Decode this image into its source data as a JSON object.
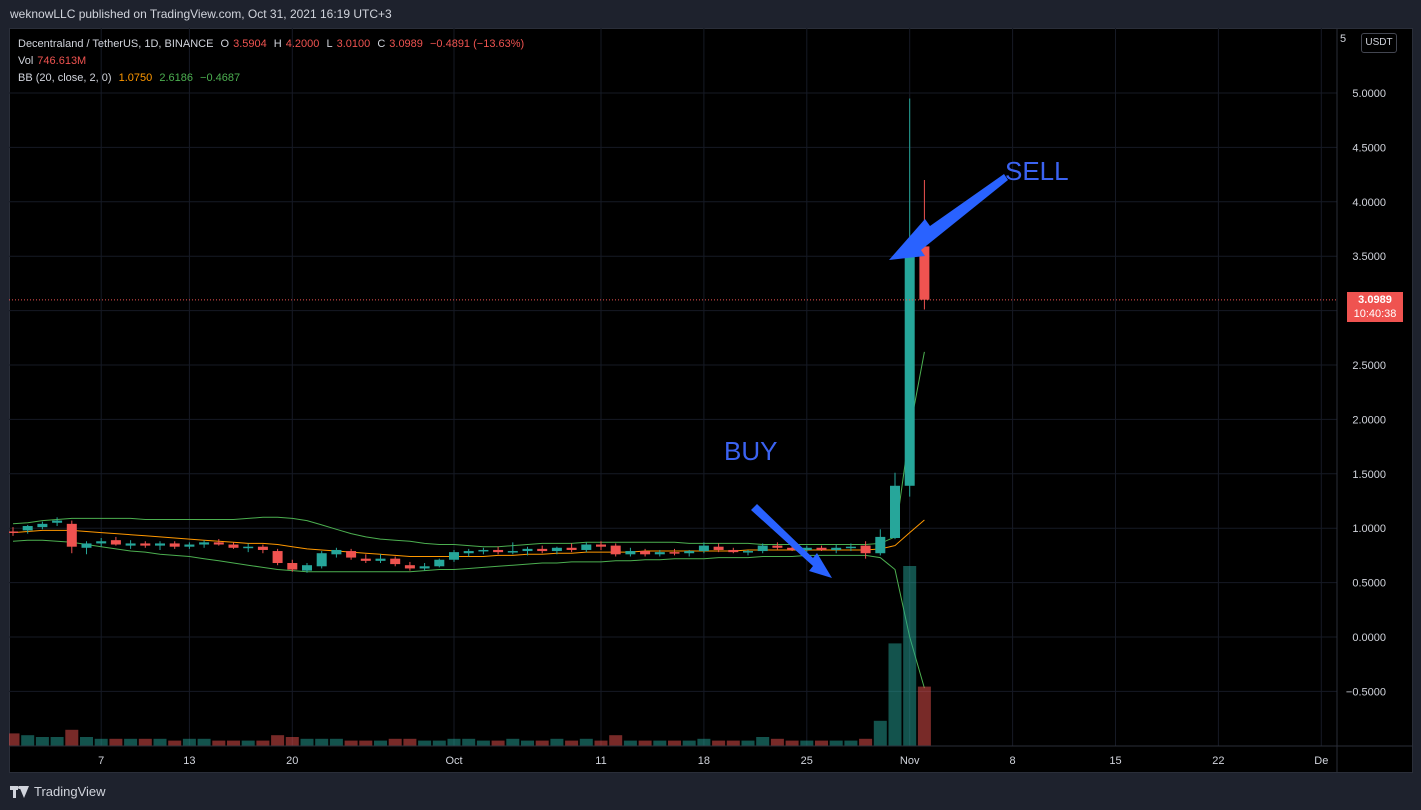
{
  "header": {
    "published": "weknowLLC published on TradingView.com, Oct 31, 2021 16:19 UTC+3"
  },
  "legend": {
    "symbol": "Decentraland / TetherUS, 1D, BINANCE",
    "o_label": "O",
    "o": "3.5904",
    "h_label": "H",
    "h": "4.2000",
    "l_label": "L",
    "l": "3.0100",
    "c_label": "C",
    "c": "3.0989",
    "change": "−0.4891 (−13.63%)",
    "vol_label": "Vol",
    "vol": "746.613M",
    "bb_label": "BB (20, close, 2, 0)",
    "bb_basis": "1.0750",
    "bb_upper": "2.6186",
    "bb_lower": "−0.4687"
  },
  "price_axis": {
    "currency": "USDT",
    "top_cut_label": "5",
    "last_price": "3.0989",
    "countdown": "10:40:38"
  },
  "annotations": {
    "buy": "BUY",
    "sell": "SELL"
  },
  "footer": {
    "brand": "TradingView"
  },
  "colors": {
    "up": "#26a69a",
    "down": "#ef5350",
    "bb_basis": "#ff9800",
    "bb_band": "#4caf50",
    "arrow": "#2962ff"
  },
  "chart_data": {
    "type": "candlestick",
    "y_range": [
      -1.0,
      5.5
    ],
    "y_ticks": [
      "5.0000",
      "4.5000",
      "4.0000",
      "3.5000",
      "3.0000",
      "2.5000",
      "2.0000",
      "1.5000",
      "1.0000",
      "0.5000",
      "0.0000",
      "−0.5000"
    ],
    "y_tick_values": [
      5.0,
      4.5,
      4.0,
      3.5,
      3.0,
      2.5,
      2.0,
      1.5,
      1.0,
      0.5,
      0.0,
      -0.5
    ],
    "x_ticks": [
      "7",
      "13",
      "20",
      "Oct",
      "11",
      "18",
      "25",
      "Nov",
      "8",
      "15",
      "22",
      "De"
    ],
    "x_tick_days": [
      6,
      12,
      19,
      30,
      40,
      47,
      54,
      61,
      68,
      75,
      82,
      89
    ],
    "candles": [
      {
        "o": 0.97,
        "h": 1.01,
        "l": 0.93,
        "c": 0.96
      },
      {
        "o": 0.98,
        "h": 1.03,
        "l": 0.95,
        "c": 1.02
      },
      {
        "o": 1.01,
        "h": 1.06,
        "l": 0.99,
        "c": 1.04
      },
      {
        "o": 1.05,
        "h": 1.1,
        "l": 1.02,
        "c": 1.07
      },
      {
        "o": 1.04,
        "h": 1.07,
        "l": 0.77,
        "c": 0.83
      },
      {
        "o": 0.82,
        "h": 0.88,
        "l": 0.76,
        "c": 0.86
      },
      {
        "o": 0.86,
        "h": 0.91,
        "l": 0.83,
        "c": 0.88
      },
      {
        "o": 0.89,
        "h": 0.92,
        "l": 0.84,
        "c": 0.85
      },
      {
        "o": 0.84,
        "h": 0.89,
        "l": 0.81,
        "c": 0.86
      },
      {
        "o": 0.86,
        "h": 0.88,
        "l": 0.82,
        "c": 0.84
      },
      {
        "o": 0.84,
        "h": 0.88,
        "l": 0.8,
        "c": 0.86
      },
      {
        "o": 0.86,
        "h": 0.88,
        "l": 0.81,
        "c": 0.83
      },
      {
        "o": 0.83,
        "h": 0.87,
        "l": 0.81,
        "c": 0.85
      },
      {
        "o": 0.85,
        "h": 0.89,
        "l": 0.82,
        "c": 0.87
      },
      {
        "o": 0.87,
        "h": 0.9,
        "l": 0.84,
        "c": 0.85
      },
      {
        "o": 0.85,
        "h": 0.87,
        "l": 0.81,
        "c": 0.82
      },
      {
        "o": 0.82,
        "h": 0.86,
        "l": 0.78,
        "c": 0.83
      },
      {
        "o": 0.83,
        "h": 0.85,
        "l": 0.77,
        "c": 0.8
      },
      {
        "o": 0.79,
        "h": 0.81,
        "l": 0.66,
        "c": 0.68
      },
      {
        "o": 0.68,
        "h": 0.71,
        "l": 0.6,
        "c": 0.62
      },
      {
        "o": 0.61,
        "h": 0.68,
        "l": 0.59,
        "c": 0.66
      },
      {
        "o": 0.65,
        "h": 0.79,
        "l": 0.63,
        "c": 0.77
      },
      {
        "o": 0.76,
        "h": 0.82,
        "l": 0.73,
        "c": 0.8
      },
      {
        "o": 0.79,
        "h": 0.81,
        "l": 0.71,
        "c": 0.73
      },
      {
        "o": 0.72,
        "h": 0.76,
        "l": 0.68,
        "c": 0.7
      },
      {
        "o": 0.7,
        "h": 0.76,
        "l": 0.68,
        "c": 0.72
      },
      {
        "o": 0.72,
        "h": 0.74,
        "l": 0.65,
        "c": 0.67
      },
      {
        "o": 0.66,
        "h": 0.69,
        "l": 0.61,
        "c": 0.63
      },
      {
        "o": 0.63,
        "h": 0.68,
        "l": 0.61,
        "c": 0.65
      },
      {
        "o": 0.65,
        "h": 0.72,
        "l": 0.64,
        "c": 0.71
      },
      {
        "o": 0.71,
        "h": 0.8,
        "l": 0.69,
        "c": 0.78
      },
      {
        "o": 0.77,
        "h": 0.81,
        "l": 0.74,
        "c": 0.79
      },
      {
        "o": 0.79,
        "h": 0.82,
        "l": 0.76,
        "c": 0.8
      },
      {
        "o": 0.8,
        "h": 0.83,
        "l": 0.76,
        "c": 0.78
      },
      {
        "o": 0.78,
        "h": 0.87,
        "l": 0.76,
        "c": 0.79
      },
      {
        "o": 0.79,
        "h": 0.83,
        "l": 0.75,
        "c": 0.81
      },
      {
        "o": 0.81,
        "h": 0.84,
        "l": 0.77,
        "c": 0.79
      },
      {
        "o": 0.79,
        "h": 0.83,
        "l": 0.76,
        "c": 0.82
      },
      {
        "o": 0.82,
        "h": 0.86,
        "l": 0.78,
        "c": 0.8
      },
      {
        "o": 0.8,
        "h": 0.87,
        "l": 0.78,
        "c": 0.85
      },
      {
        "o": 0.85,
        "h": 0.88,
        "l": 0.8,
        "c": 0.83
      },
      {
        "o": 0.84,
        "h": 0.86,
        "l": 0.74,
        "c": 0.76
      },
      {
        "o": 0.76,
        "h": 0.82,
        "l": 0.74,
        "c": 0.79
      },
      {
        "o": 0.79,
        "h": 0.81,
        "l": 0.74,
        "c": 0.76
      },
      {
        "o": 0.76,
        "h": 0.8,
        "l": 0.74,
        "c": 0.78
      },
      {
        "o": 0.78,
        "h": 0.81,
        "l": 0.75,
        "c": 0.77
      },
      {
        "o": 0.77,
        "h": 0.8,
        "l": 0.74,
        "c": 0.79
      },
      {
        "o": 0.79,
        "h": 0.87,
        "l": 0.77,
        "c": 0.84
      },
      {
        "o": 0.83,
        "h": 0.86,
        "l": 0.78,
        "c": 0.8
      },
      {
        "o": 0.8,
        "h": 0.82,
        "l": 0.77,
        "c": 0.78
      },
      {
        "o": 0.78,
        "h": 0.8,
        "l": 0.75,
        "c": 0.79
      },
      {
        "o": 0.79,
        "h": 0.86,
        "l": 0.77,
        "c": 0.84
      },
      {
        "o": 0.84,
        "h": 0.87,
        "l": 0.8,
        "c": 0.82
      },
      {
        "o": 0.82,
        "h": 0.84,
        "l": 0.79,
        "c": 0.8
      },
      {
        "o": 0.8,
        "h": 0.84,
        "l": 0.78,
        "c": 0.82
      },
      {
        "o": 0.82,
        "h": 0.84,
        "l": 0.79,
        "c": 0.8
      },
      {
        "o": 0.8,
        "h": 0.85,
        "l": 0.77,
        "c": 0.82
      },
      {
        "o": 0.82,
        "h": 0.86,
        "l": 0.79,
        "c": 0.83
      },
      {
        "o": 0.84,
        "h": 0.88,
        "l": 0.72,
        "c": 0.77
      },
      {
        "o": 0.77,
        "h": 0.99,
        "l": 0.75,
        "c": 0.92
      },
      {
        "o": 0.91,
        "h": 1.51,
        "l": 0.9,
        "c": 1.39
      },
      {
        "o": 1.39,
        "h": 4.95,
        "l": 1.29,
        "c": 3.59
      },
      {
        "o": 3.59,
        "h": 4.2,
        "l": 3.01,
        "c": 3.1
      }
    ],
    "volume_relative": [
      0.07,
      0.06,
      0.05,
      0.05,
      0.09,
      0.05,
      0.04,
      0.04,
      0.04,
      0.04,
      0.04,
      0.03,
      0.04,
      0.04,
      0.03,
      0.03,
      0.03,
      0.03,
      0.06,
      0.05,
      0.04,
      0.04,
      0.04,
      0.03,
      0.03,
      0.03,
      0.04,
      0.04,
      0.03,
      0.03,
      0.04,
      0.04,
      0.03,
      0.03,
      0.04,
      0.03,
      0.03,
      0.04,
      0.03,
      0.04,
      0.03,
      0.06,
      0.03,
      0.03,
      0.03,
      0.03,
      0.03,
      0.04,
      0.03,
      0.03,
      0.03,
      0.05,
      0.04,
      0.03,
      0.03,
      0.03,
      0.03,
      0.03,
      0.04,
      0.14,
      0.57,
      1.0,
      0.33
    ],
    "bb_upper": [
      1.04,
      1.05,
      1.07,
      1.08,
      1.09,
      1.09,
      1.09,
      1.09,
      1.09,
      1.08,
      1.08,
      1.08,
      1.08,
      1.08,
      1.08,
      1.08,
      1.09,
      1.1,
      1.1,
      1.09,
      1.07,
      1.03,
      0.99,
      0.95,
      0.92,
      0.9,
      0.89,
      0.88,
      0.86,
      0.85,
      0.85,
      0.84,
      0.83,
      0.83,
      0.84,
      0.85,
      0.86,
      0.86,
      0.86,
      0.87,
      0.87,
      0.87,
      0.87,
      0.87,
      0.87,
      0.87,
      0.86,
      0.86,
      0.86,
      0.86,
      0.86,
      0.85,
      0.85,
      0.85,
      0.85,
      0.85,
      0.85,
      0.85,
      0.85,
      0.86,
      0.92,
      1.9,
      2.62
    ],
    "bb_basis": [
      0.96,
      0.97,
      0.98,
      0.98,
      0.98,
      0.97,
      0.96,
      0.95,
      0.94,
      0.93,
      0.92,
      0.91,
      0.9,
      0.89,
      0.88,
      0.87,
      0.86,
      0.86,
      0.85,
      0.83,
      0.81,
      0.8,
      0.79,
      0.78,
      0.77,
      0.76,
      0.75,
      0.74,
      0.74,
      0.74,
      0.74,
      0.74,
      0.74,
      0.75,
      0.75,
      0.76,
      0.76,
      0.77,
      0.77,
      0.78,
      0.78,
      0.78,
      0.78,
      0.79,
      0.79,
      0.79,
      0.79,
      0.79,
      0.79,
      0.79,
      0.8,
      0.8,
      0.8,
      0.8,
      0.8,
      0.8,
      0.8,
      0.8,
      0.8,
      0.81,
      0.84,
      0.96,
      1.075
    ],
    "bb_lower": [
      0.88,
      0.89,
      0.89,
      0.88,
      0.87,
      0.85,
      0.83,
      0.81,
      0.79,
      0.78,
      0.76,
      0.75,
      0.74,
      0.72,
      0.7,
      0.68,
      0.66,
      0.64,
      0.62,
      0.61,
      0.6,
      0.6,
      0.6,
      0.6,
      0.6,
      0.6,
      0.6,
      0.6,
      0.61,
      0.62,
      0.62,
      0.63,
      0.64,
      0.65,
      0.66,
      0.67,
      0.68,
      0.68,
      0.69,
      0.69,
      0.69,
      0.7,
      0.7,
      0.71,
      0.71,
      0.72,
      0.72,
      0.72,
      0.73,
      0.73,
      0.73,
      0.74,
      0.74,
      0.74,
      0.75,
      0.75,
      0.75,
      0.75,
      0.75,
      0.73,
      0.62,
      0.0,
      -0.47
    ],
    "last_price": 3.0989
  }
}
